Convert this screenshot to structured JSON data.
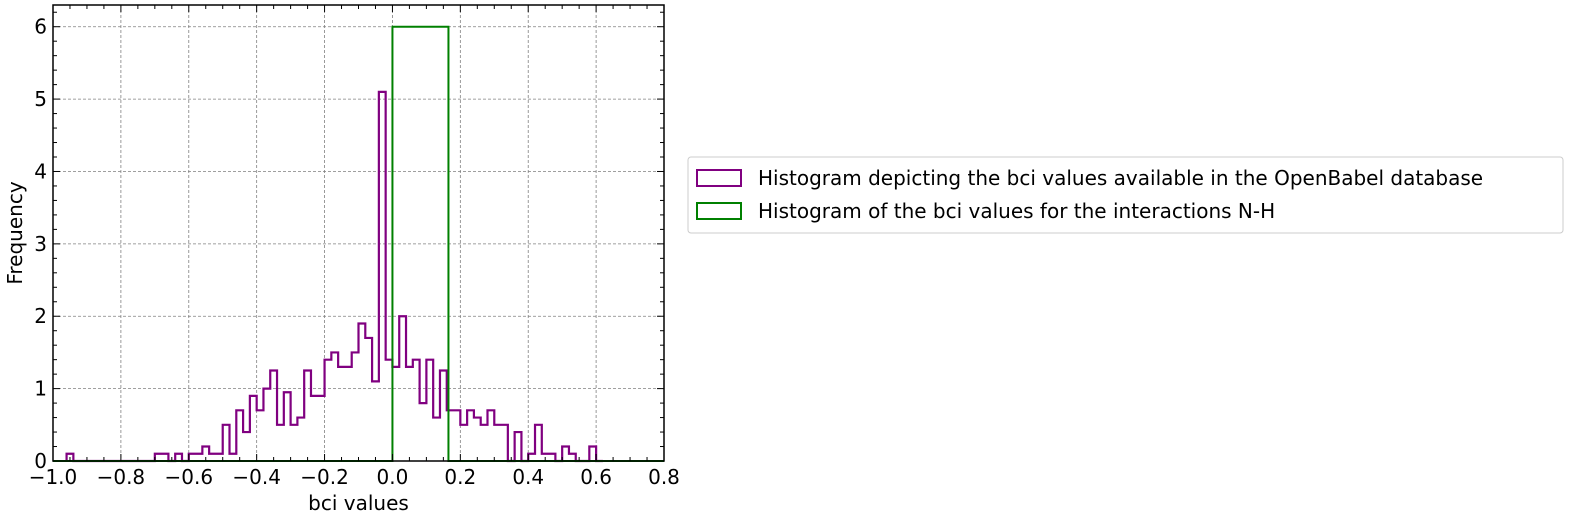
{
  "chart_data": {
    "type": "histogram",
    "title": "",
    "xlabel": "bci values",
    "ylabel": "Frequency",
    "xlim": [
      -1.0,
      0.8
    ],
    "ylim": [
      0,
      6.3
    ],
    "xticks": [
      -1.0,
      -0.8,
      -0.6,
      -0.4,
      -0.2,
      0.0,
      0.2,
      0.4,
      0.6,
      0.8
    ],
    "xtick_labels": [
      "−1.0",
      "−0.8",
      "−0.6",
      "−0.4",
      "−0.2",
      "0.0",
      "0.2",
      "0.4",
      "0.6",
      "0.8"
    ],
    "yticks": [
      0,
      1,
      2,
      3,
      4,
      5,
      6
    ],
    "ytick_labels": [
      "0",
      "1",
      "2",
      "3",
      "4",
      "5",
      "6"
    ],
    "grid": true,
    "legend_placement": "right-outside",
    "series": [
      {
        "name": "Histogram depicting the bci values available in the OpenBabel database",
        "color": "#800080",
        "bin_start": -0.96,
        "bin_width": 0.02,
        "values": [
          0.1,
          0,
          0,
          0,
          0,
          0,
          0,
          0,
          0,
          0,
          0,
          0,
          0,
          0.1,
          0.1,
          0,
          0.1,
          0,
          0.1,
          0.1,
          0.2,
          0.1,
          0.1,
          0.5,
          0.1,
          0.7,
          0.4,
          0.9,
          0.7,
          1.0,
          1.25,
          0.5,
          0.95,
          0.5,
          0.6,
          1.25,
          0.9,
          0.9,
          1.4,
          1.5,
          1.3,
          1.3,
          1.5,
          1.9,
          1.7,
          1.1,
          5.1,
          1.4,
          1.3,
          2.0,
          1.3,
          1.4,
          0.8,
          1.4,
          0.6,
          1.25,
          0.7,
          0.7,
          0.5,
          0.7,
          0.6,
          0.5,
          0.7,
          0.5,
          0.5,
          0,
          0.4,
          0,
          0.1,
          0.5,
          0.1,
          0.1,
          0,
          0.2,
          0.1,
          0,
          0,
          0.2,
          0
        ]
      },
      {
        "name": "Histogram of the bci values for the interactions N-H",
        "color": "#008000",
        "bin_edges": [
          -1.0,
          0.0,
          0.165,
          0.8
        ],
        "values": [
          0,
          6,
          0
        ]
      }
    ]
  }
}
